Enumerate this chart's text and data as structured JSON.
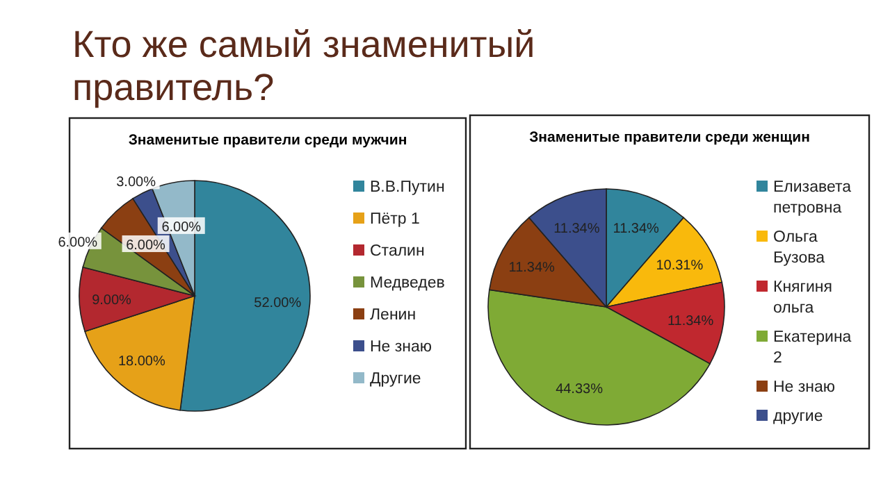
{
  "chart_data": [
    {
      "type": "pie",
      "title": "Кто же самый знаменитый правитель?",
      "subtitle": "Знаменитые правители среди мужчин",
      "categories": [
        "В.В.Путин",
        "Пётр 1",
        "Сталин",
        "Медведев",
        "Ленин",
        "Не знаю",
        "Другие"
      ],
      "values": [
        52,
        18,
        9,
        6,
        6,
        3,
        6
      ],
      "value_labels": [
        "52.00%",
        "18.00%",
        "9.00%",
        "6.00%",
        "6.00%",
        "3.00%",
        "6.00%"
      ],
      "colors": [
        "#31859c",
        "#e6a118",
        "#b3282f",
        "#77933c",
        "#8b3f12",
        "#3c4f8c",
        "#93b9c9"
      ],
      "legend": "right"
    },
    {
      "type": "pie",
      "subtitle": "Знаменитые правители среди женщин",
      "categories": [
        "Елизавета петровна",
        "Ольга Бузова",
        "Княгиня ольга",
        "Екатерина 2",
        "Не знаю",
        "другие"
      ],
      "values": [
        11.34,
        10.31,
        11.34,
        44.33,
        11.34,
        11.34
      ],
      "value_labels": [
        "11.34%",
        "10.31%",
        "11.34%",
        "44.33%",
        "11.34%",
        "11.34%"
      ],
      "colors": [
        "#31859c",
        "#f9b90c",
        "#c0282f",
        "#7faa35",
        "#8b3f12",
        "#3c4f8c"
      ],
      "legend": "right"
    }
  ]
}
